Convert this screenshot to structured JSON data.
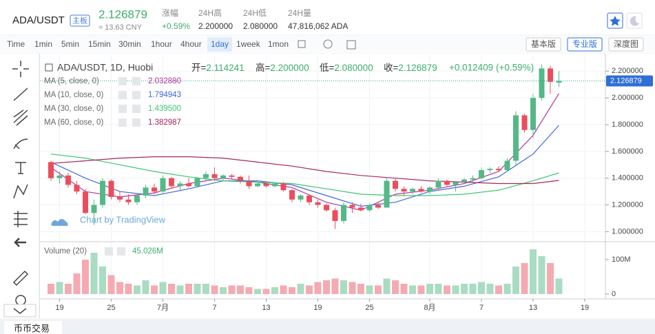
{
  "header": {
    "pair": "ADA/USDT",
    "badge": "主板",
    "price": "2.126879",
    "cny": "≈ 13.63 CNY",
    "stats": [
      {
        "label": "涨幅",
        "value": "+0.59%"
      },
      {
        "label": "24H高",
        "value": "2.200000"
      },
      {
        "label": "24H低",
        "value": "2.080000"
      },
      {
        "label": "24H量",
        "value": "47,816,062 ADA"
      }
    ]
  },
  "toolbar": {
    "intervals": [
      "Time",
      "1min",
      "5min",
      "15min",
      "30min",
      "1hour",
      "4hour",
      "1day",
      "1week",
      "1mon"
    ],
    "active": "1day",
    "views": [
      "基本版",
      "专业版",
      "深度图"
    ],
    "active_view": "专业版"
  },
  "footer": {
    "tab": "币币交易"
  },
  "chart_data": {
    "type": "candlestick",
    "legend": {
      "symbol": "ADA/USDT, 1D, Huobi",
      "ohlc": [
        {
          "label": "开=",
          "value": "2.114241"
        },
        {
          "label": "高=",
          "value": "2.200000"
        },
        {
          "label": "低=",
          "value": "2.080000"
        },
        {
          "label": "收=",
          "value": "2.126879"
        }
      ],
      "change": "+0.012409 (+0.59%)"
    },
    "watermark": "Chart by TradingView",
    "categories": [
      null,
      "19",
      null,
      null,
      null,
      null,
      null,
      "25",
      null,
      null,
      null,
      null,
      null,
      "7月",
      null,
      null,
      null,
      null,
      null,
      "7",
      null,
      null,
      null,
      null,
      null,
      "13",
      null,
      null,
      null,
      null,
      null,
      "19",
      null,
      null,
      null,
      null,
      null,
      "25",
      null,
      null,
      null,
      null,
      null,
      null,
      "8月",
      null,
      null,
      null,
      null,
      null,
      "7",
      null,
      null,
      null,
      null,
      null,
      "13",
      null,
      null,
      null,
      null,
      null,
      "19"
    ],
    "open": [
      1.52,
      1.4,
      1.42,
      1.35,
      1.3,
      1.14,
      1.2,
      1.38,
      1.26,
      1.24,
      1.22,
      1.27,
      1.33,
      1.3,
      1.4,
      1.34,
      1.36,
      1.34,
      1.4,
      1.43,
      1.4,
      1.42,
      1.41,
      1.38,
      1.34,
      1.36,
      1.34,
      1.36,
      1.31,
      1.24,
      1.27,
      1.22,
      1.2,
      1.16,
      1.08,
      1.2,
      1.18,
      1.16,
      1.2,
      1.18,
      1.38,
      1.32,
      1.3,
      1.32,
      1.3,
      1.33,
      1.38,
      1.35,
      1.37,
      1.39,
      1.4,
      1.46,
      1.47,
      1.46,
      1.53,
      1.87,
      1.76,
      2.0,
      2.22,
      2.114241,
      null,
      null,
      null
    ],
    "high": [
      1.53,
      1.45,
      1.44,
      1.38,
      1.32,
      1.24,
      1.4,
      1.39,
      1.3,
      1.28,
      1.28,
      1.35,
      1.36,
      1.42,
      1.41,
      1.38,
      1.4,
      1.41,
      1.45,
      1.48,
      1.43,
      1.43,
      1.42,
      1.42,
      1.37,
      1.37,
      1.37,
      1.37,
      1.32,
      1.28,
      1.28,
      1.24,
      1.21,
      1.18,
      1.22,
      1.22,
      1.21,
      1.21,
      1.22,
      1.4,
      1.4,
      1.34,
      1.33,
      1.34,
      1.34,
      1.4,
      1.39,
      1.38,
      1.4,
      1.42,
      1.48,
      1.48,
      1.49,
      1.55,
      1.9,
      1.88,
      2.03,
      2.25,
      2.24,
      2.2,
      null,
      null,
      null
    ],
    "low": [
      1.38,
      1.36,
      1.33,
      1.28,
      1.13,
      1.05,
      1.18,
      1.24,
      1.22,
      1.2,
      1.2,
      1.25,
      1.28,
      1.29,
      1.32,
      1.31,
      1.33,
      1.33,
      1.38,
      1.38,
      1.38,
      1.39,
      1.36,
      1.32,
      1.33,
      1.33,
      1.33,
      1.3,
      1.22,
      1.22,
      1.2,
      1.18,
      1.15,
      1.02,
      1.06,
      1.14,
      1.15,
      1.15,
      1.17,
      1.18,
      1.3,
      1.27,
      1.28,
      1.29,
      1.28,
      1.31,
      1.34,
      1.3,
      1.36,
      1.37,
      1.39,
      1.44,
      1.45,
      1.45,
      1.5,
      1.74,
      1.7,
      1.98,
      2.03,
      2.08,
      null,
      null,
      null
    ],
    "close": [
      1.4,
      1.42,
      1.35,
      1.3,
      1.14,
      1.2,
      1.38,
      1.26,
      1.24,
      1.22,
      1.27,
      1.33,
      1.3,
      1.4,
      1.34,
      1.36,
      1.34,
      1.4,
      1.43,
      1.4,
      1.42,
      1.41,
      1.38,
      1.34,
      1.36,
      1.34,
      1.36,
      1.31,
      1.24,
      1.27,
      1.22,
      1.2,
      1.16,
      1.08,
      1.2,
      1.18,
      1.16,
      1.2,
      1.18,
      1.38,
      1.32,
      1.3,
      1.32,
      1.3,
      1.33,
      1.38,
      1.35,
      1.37,
      1.39,
      1.4,
      1.46,
      1.47,
      1.46,
      1.53,
      1.87,
      1.76,
      2.0,
      2.22,
      2.12,
      2.126879,
      null,
      null,
      null
    ],
    "up_color": "#53b987",
    "down_color": "#eb4d5c",
    "ylim": [
      0.93,
      2.32
    ],
    "yticks": [
      {
        "value": 1,
        "label": "1.000000"
      },
      {
        "value": 1.2,
        "label": "1.200000"
      },
      {
        "value": 1.4,
        "label": "1.400000"
      },
      {
        "value": 1.6,
        "label": "1.600000"
      },
      {
        "value": 1.8,
        "label": "1.800000"
      },
      {
        "value": 2,
        "label": "2.000000"
      },
      {
        "value": 2.2,
        "label": "2.200000"
      }
    ],
    "grid": true,
    "ma_x": [
      0,
      4,
      8,
      12,
      16,
      20,
      24,
      28,
      32,
      36,
      40,
      44,
      48,
      52,
      56,
      59
    ],
    "ma": [
      {
        "name": "MA (5, close, 0)",
        "color": "#b0359a",
        "value_label": "2.032880",
        "values": [
          1.48,
          1.3,
          1.26,
          1.29,
          1.36,
          1.4,
          1.37,
          1.33,
          1.22,
          1.16,
          1.28,
          1.31,
          1.36,
          1.45,
          1.72,
          2.03288
        ]
      },
      {
        "name": "MA (10, close, 0)",
        "color": "#3d68d8",
        "value_label": "1.794943",
        "values": [
          1.52,
          1.4,
          1.3,
          1.27,
          1.32,
          1.38,
          1.38,
          1.35,
          1.27,
          1.19,
          1.22,
          1.3,
          1.34,
          1.41,
          1.58,
          1.794943
        ]
      },
      {
        "name": "MA (30, close, 0)",
        "color": "#3cc46e",
        "value_label": "1.439500",
        "values": [
          1.58,
          1.55,
          1.5,
          1.45,
          1.41,
          1.38,
          1.37,
          1.36,
          1.32,
          1.28,
          1.27,
          1.27,
          1.28,
          1.31,
          1.38,
          1.4395
        ]
      },
      {
        "name": "MA (60, close, 0)",
        "color": "#a8245e",
        "value_label": "1.382987",
        "values": [
          1.51,
          1.53,
          1.55,
          1.56,
          1.56,
          1.55,
          1.52,
          1.49,
          1.45,
          1.42,
          1.4,
          1.38,
          1.37,
          1.36,
          1.36,
          1.382987
        ]
      }
    ],
    "volume_name": "Volume (20)",
    "volume_label": "45.026M",
    "volume": [
      30,
      35,
      30,
      60,
      100,
      120,
      80,
      55,
      35,
      30,
      25,
      40,
      25,
      35,
      30,
      25,
      30,
      30,
      30,
      25,
      20,
      25,
      25,
      20,
      15,
      15,
      20,
      25,
      20,
      30,
      25,
      35,
      40,
      45,
      40,
      35,
      30,
      25,
      25,
      45,
      40,
      30,
      25,
      25,
      30,
      30,
      25,
      25,
      30,
      30,
      35,
      30,
      25,
      30,
      80,
      90,
      130,
      110,
      90,
      45.026,
      null,
      null,
      null
    ],
    "volume_ylim": [
      -10,
      150
    ],
    "volume_ticks": [
      {
        "value": 100,
        "label": "100M"
      },
      0
    ]
  }
}
